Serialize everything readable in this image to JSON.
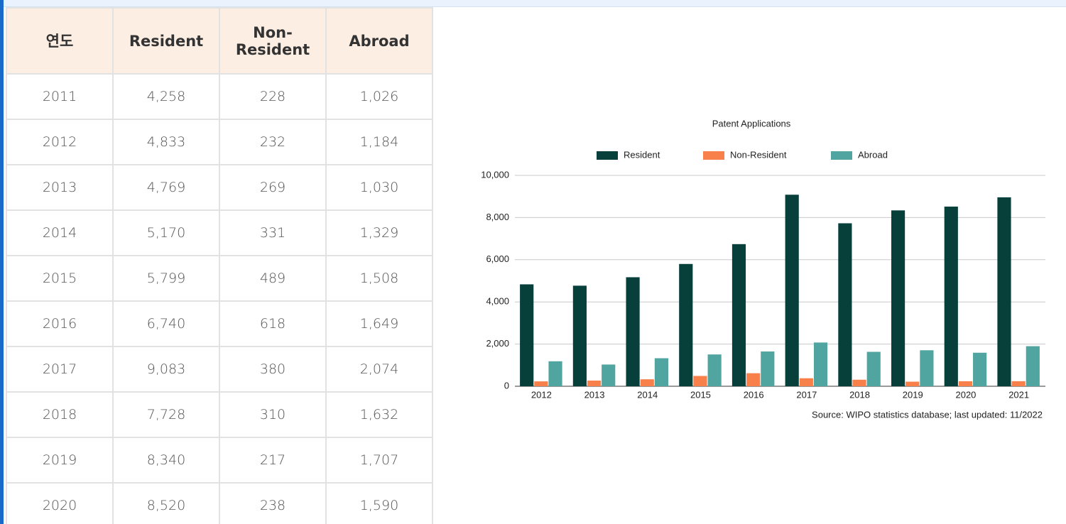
{
  "table": {
    "header": [
      "연도",
      "Resident",
      "Non-Resident",
      "Abroad"
    ],
    "rows": [
      [
        "2011",
        "4,258",
        "228",
        "1,026"
      ],
      [
        "2012",
        "4,833",
        "232",
        "1,184"
      ],
      [
        "2013",
        "4,769",
        "269",
        "1,030"
      ],
      [
        "2014",
        "5,170",
        "331",
        "1,329"
      ],
      [
        "2015",
        "5,799",
        "489",
        "1,508"
      ],
      [
        "2016",
        "6,740",
        "618",
        "1,649"
      ],
      [
        "2017",
        "9,083",
        "380",
        "2,074"
      ],
      [
        "2018",
        "7,728",
        "310",
        "1,632"
      ],
      [
        "2019",
        "8,340",
        "217",
        "1,707"
      ],
      [
        "2020",
        "8,520",
        "238",
        "1,590"
      ]
    ]
  },
  "chart_data": {
    "type": "bar",
    "title": "Patent Applications",
    "categories": [
      "2012",
      "2013",
      "2014",
      "2015",
      "2016",
      "2017",
      "2018",
      "2019",
      "2020",
      "2021"
    ],
    "series": [
      {
        "name": "Resident",
        "color": "#073f3b",
        "values": [
          4833,
          4769,
          5170,
          5799,
          6740,
          9083,
          7728,
          8340,
          8520,
          8960
        ]
      },
      {
        "name": "Non-Resident",
        "color": "#f8804a",
        "values": [
          232,
          269,
          331,
          489,
          618,
          380,
          310,
          217,
          238,
          240
        ]
      },
      {
        "name": "Abroad",
        "color": "#50a5a1",
        "values": [
          1184,
          1030,
          1329,
          1508,
          1649,
          2074,
          1632,
          1707,
          1590,
          1900
        ]
      }
    ],
    "ylim": [
      0,
      10000
    ],
    "yticks": [
      0,
      {
        "value": 2000,
        "label": "2,000"
      },
      {
        "value": 4000,
        "label": "4,000"
      },
      {
        "value": 6000,
        "label": "6,000"
      },
      {
        "value": 8000,
        "label": "8,000"
      },
      {
        "value": 10000,
        "label": "10,000"
      }
    ],
    "grid": true,
    "legend": "top",
    "source": "Source: WIPO statistics database; last updated: 11/2022"
  }
}
